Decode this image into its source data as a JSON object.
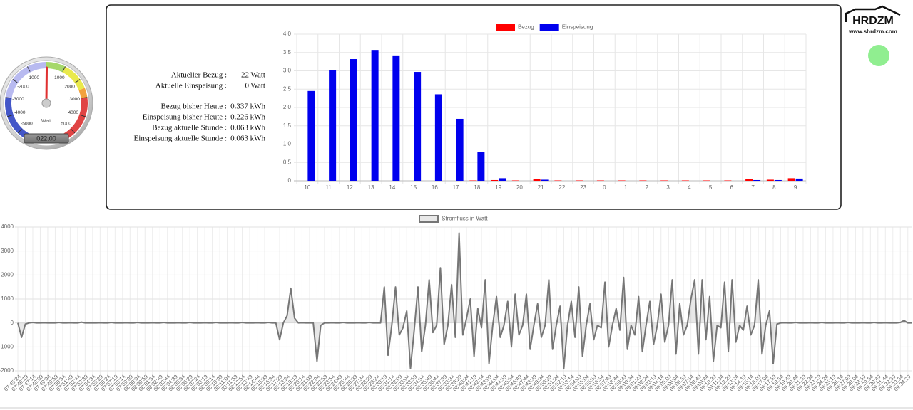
{
  "info": {
    "rows": [
      {
        "label": "Aktueller Bezug :",
        "value": "22 Watt"
      },
      {
        "label": "Aktuelle Einspeisung :",
        "value": "0 Watt"
      },
      {
        "label": "Bezug bisher Heute :",
        "value": "0.337 kWh"
      },
      {
        "label": "Einspeisung bisher Heute :",
        "value": "0.226 kWh"
      },
      {
        "label": "Bezug aktuelle Stunde :",
        "value": "0.063 kWh"
      },
      {
        "label": "Einspeisung aktuelle Stunde :",
        "value": "0.063 kWh"
      }
    ]
  },
  "logo": {
    "text": "HRDZM",
    "url": "www.shrdzm.com",
    "status_color": "#90ee90"
  },
  "chart_data": [
    {
      "type": "gauge",
      "value": 22,
      "value_label": "022.00",
      "unit": "Watt",
      "lim": [
        -5500,
        5500
      ],
      "ticks": [
        -5000,
        -4000,
        -3000,
        -2000,
        -1000,
        1000,
        2000,
        3000,
        4000,
        5000
      ],
      "bands": [
        {
          "from": -5500,
          "to": -3000,
          "color": "#4356c8"
        },
        {
          "from": -3000,
          "to": 0,
          "color": "#b8baf0"
        },
        {
          "from": 0,
          "to": 1000,
          "color": "#a6d86a"
        },
        {
          "from": 1000,
          "to": 2500,
          "color": "#e9e94c"
        },
        {
          "from": 2500,
          "to": 3000,
          "color": "#f2a23e"
        },
        {
          "from": 3000,
          "to": 5500,
          "color": "#e04444"
        }
      ],
      "needle_color": "#e03030"
    },
    {
      "type": "bar",
      "categories": [
        "10",
        "11",
        "12",
        "13",
        "14",
        "15",
        "16",
        "17",
        "18",
        "19",
        "20",
        "21",
        "22",
        "23",
        "0",
        "1",
        "2",
        "3",
        "4",
        "5",
        "6",
        "7",
        "8",
        "9"
      ],
      "series": [
        {
          "name": "Bezug",
          "color": "#ff0000",
          "values": [
            0,
            0,
            0,
            0,
            0,
            0,
            0,
            0,
            0.01,
            0.02,
            0.01,
            0.05,
            0.01,
            0.01,
            0.01,
            0.01,
            0.01,
            0.01,
            0.01,
            0.01,
            0.01,
            0.04,
            0.03,
            0.07
          ]
        },
        {
          "name": "Einspeisung",
          "color": "#0000ee",
          "values": [
            2.45,
            3.01,
            3.32,
            3.57,
            3.42,
            2.97,
            2.36,
            1.69,
            0.79,
            0.07,
            0,
            0.03,
            0,
            0,
            0,
            0,
            0,
            0,
            0,
            0,
            0,
            0.02,
            0.02,
            0.06
          ]
        }
      ],
      "ylim": [
        0,
        4
      ],
      "yticks": [
        0,
        0.5,
        {
          "value": 1,
          "label": "1.0"
        },
        1.5,
        {
          "value": 2,
          "label": "2.0"
        },
        2.5,
        {
          "value": 3,
          "label": "3.0"
        },
        3.5,
        {
          "value": 4,
          "label": "4.0"
        }
      ],
      "grid": true,
      "legend": "top"
    },
    {
      "type": "line",
      "ylim": [
        -2000,
        4000
      ],
      "yticks": [
        -2000,
        -1000,
        0,
        1000,
        2000,
        3000,
        4000
      ],
      "grid": true,
      "legend": "top",
      "categories": [
        "07:45:24",
        null,
        "07:46:19",
        null,
        "07:47:14",
        null,
        "07:48:09",
        null,
        "07:49:04",
        null,
        "07:49:59",
        null,
        "07:50:54",
        null,
        "07:51:49",
        null,
        "07:52:44",
        null,
        "07:53:39",
        null,
        "07:54:34",
        null,
        "07:55:29",
        null,
        "07:56:24",
        null,
        "07:57:19",
        null,
        "07:58:14",
        null,
        "07:59:09",
        null,
        "08:00:04",
        null,
        "08:00:59",
        null,
        "08:01:54",
        null,
        "08:02:49",
        null,
        "08:03:44",
        null,
        "08:04:39",
        null,
        "08:05:34",
        null,
        "08:06:29",
        null,
        "08:07:24",
        null,
        "08:08:19",
        null,
        "08:09:14",
        null,
        "08:10:09",
        null,
        "08:11:04",
        null,
        "08:11:59",
        null,
        "08:12:54",
        null,
        "08:13:49",
        null,
        "08:14:44",
        null,
        "08:15:39",
        null,
        "08:16:34",
        null,
        "08:17:29",
        null,
        "08:18:24",
        null,
        "08:19:19",
        null,
        "08:20:14",
        null,
        "08:21:09",
        null,
        "08:22:04",
        null,
        "08:22:59",
        null,
        "08:23:54",
        null,
        "08:24:49",
        null,
        "08:25:44",
        null,
        "08:26:39",
        null,
        "08:27:34",
        null,
        "08:28:29",
        null,
        "08:29:24",
        null,
        "08:30:19",
        null,
        "08:31:14",
        null,
        "08:32:09",
        null,
        "08:33:04",
        null,
        "08:33:59",
        null,
        "08:34:54",
        null,
        "08:35:49",
        null,
        "08:36:44",
        null,
        "08:37:39",
        null,
        "08:38:34",
        null,
        "08:39:29",
        null,
        "08:40:24",
        null,
        "08:41:19",
        null,
        "08:42:14",
        null,
        "08:43:09",
        null,
        "08:44:04",
        null,
        "08:44:59",
        null,
        "08:45:54",
        null,
        "08:46:49",
        null,
        "08:47:44",
        null,
        "08:48:39",
        null,
        "08:49:34",
        null,
        "08:50:29",
        null,
        "08:51:24",
        null,
        "08:52:19",
        null,
        "08:53:14",
        null,
        "08:54:09",
        null,
        "08:55:04",
        null,
        "08:55:59",
        null,
        "08:56:54",
        null,
        "08:57:49",
        null,
        "08:58:44",
        null,
        "08:59:39",
        null,
        "09:00:34",
        null,
        "09:01:29",
        null,
        "09:02:24",
        null,
        "09:03:19",
        null,
        "09:04:14",
        null,
        "09:05:09",
        null,
        "09:06:04",
        null,
        "09:06:59",
        null,
        "09:07:54",
        null,
        "09:08:49",
        null,
        "09:09:44",
        null,
        "09:10:39",
        null,
        "09:11:34",
        null,
        "09:12:29",
        null,
        "09:13:24",
        null,
        "09:14:19",
        null,
        "09:15:14",
        null,
        "09:16:09",
        null,
        "09:17:04",
        null,
        "09:17:59",
        null,
        "09:18:54",
        null,
        "09:19:49",
        null,
        "09:20:44",
        null,
        "09:21:39",
        null,
        "09:22:34",
        null,
        "09:23:29",
        null,
        "09:24:24",
        null,
        "09:25:19",
        null,
        "09:26:14",
        null,
        "09:27:09",
        null,
        "09:28:04",
        null,
        "09:28:59",
        null,
        "09:29:54",
        null,
        "09:30:49",
        null,
        "09:31:44",
        null,
        "09:32:39",
        null,
        "09:33:34",
        null,
        "09:34:29",
        null
      ],
      "series": [
        {
          "name": "Stromfluss in Watt",
          "color": "#767676",
          "fill": "rgba(150,150,150,0.22)",
          "values": [
            0,
            -600,
            -50,
            0,
            20,
            0,
            0,
            10,
            0,
            0,
            0,
            20,
            0,
            0,
            10,
            0,
            0,
            30,
            0,
            0,
            0,
            0,
            10,
            0,
            0,
            20,
            0,
            0,
            0,
            10,
            0,
            0,
            20,
            0,
            0,
            0,
            10,
            0,
            0,
            20,
            0,
            0,
            0,
            10,
            0,
            0,
            20,
            0,
            0,
            0,
            10,
            0,
            0,
            20,
            0,
            0,
            0,
            10,
            0,
            0,
            20,
            0,
            0,
            0,
            10,
            0,
            0,
            20,
            0,
            0,
            -700,
            0,
            300,
            1450,
            200,
            0,
            10,
            0,
            0,
            0,
            -1600,
            -100,
            0,
            0,
            10,
            0,
            0,
            20,
            0,
            0,
            0,
            10,
            0,
            0,
            20,
            0,
            0,
            0,
            1500,
            -1350,
            -100,
            1500,
            -500,
            -200,
            500,
            -1900,
            -300,
            1500,
            -1200,
            -100,
            1800,
            -400,
            -100,
            2300,
            -900,
            -100,
            1600,
            -600,
            3750,
            -500,
            200,
            1000,
            -1400,
            600,
            -200,
            1800,
            -1700,
            -100,
            1100,
            -600,
            -100,
            900,
            -1000,
            1200,
            -500,
            -100,
            1200,
            -1100,
            -100,
            800,
            -600,
            -100,
            1800,
            -1100,
            -100,
            700,
            -1900,
            -100,
            900,
            -600,
            1500,
            -1400,
            -100,
            800,
            -700,
            -100,
            -200,
            1700,
            -1000,
            -100,
            600,
            -300,
            1900,
            -1100,
            -100,
            -500,
            1100,
            -1200,
            -100,
            900,
            -900,
            -100,
            1200,
            -800,
            -100,
            1800,
            -1300,
            800,
            -500,
            -100,
            1000,
            1800,
            -1300,
            1800,
            -700,
            1100,
            -1600,
            -100,
            -200,
            1700,
            -1200,
            1800,
            -800,
            -100,
            -300,
            700,
            -500,
            -100,
            1800,
            -1300,
            -100,
            500,
            -1700,
            -50,
            0,
            10,
            0,
            0,
            20,
            0,
            0,
            0,
            10,
            0,
            0,
            20,
            0,
            0,
            0,
            10,
            0,
            0,
            20,
            0,
            0,
            0,
            10,
            0,
            0,
            20,
            0,
            0,
            10,
            0,
            0,
            0,
            20,
            100,
            0,
            0
          ]
        }
      ]
    }
  ]
}
